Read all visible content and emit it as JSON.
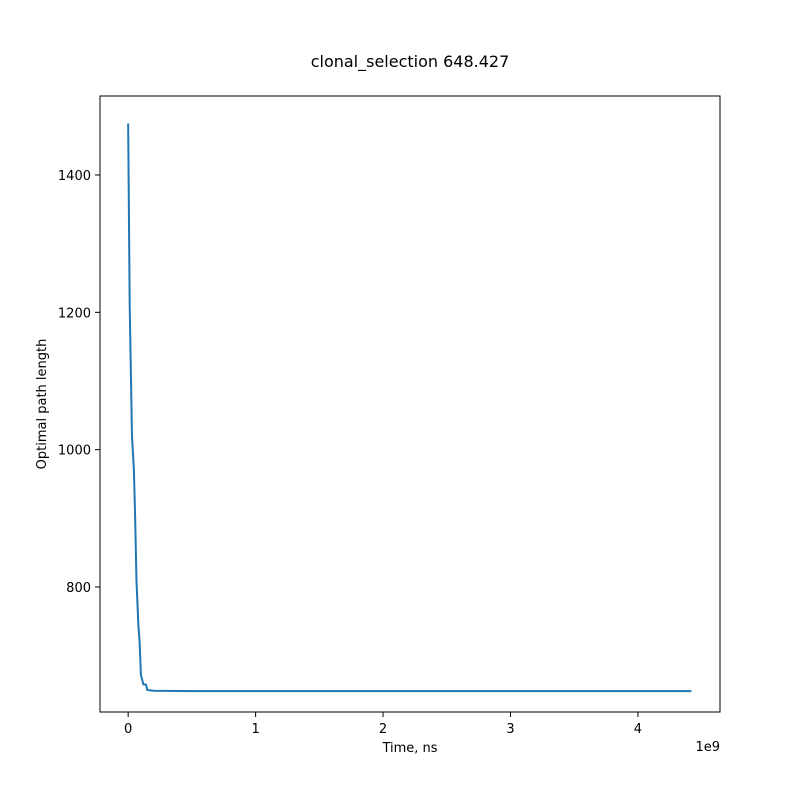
{
  "chart_data": {
    "type": "line",
    "title": "clonal_selection 648.427",
    "xlabel": "Time, ns",
    "ylabel": "Optimal path length",
    "x_offset_label": "1e9",
    "xlim": [
      -0.221,
      4.644
    ],
    "ylim": [
      618,
      1515
    ],
    "x_ticks": [
      0,
      1,
      2,
      3,
      4
    ],
    "x_tick_labels": [
      "0",
      "1",
      "2",
      "3",
      "4"
    ],
    "y_ticks": [
      800,
      1000,
      1200,
      1400
    ],
    "y_tick_labels": [
      "800",
      "1000",
      "1200",
      "1400"
    ],
    "grid": false,
    "series": [
      {
        "color": "#1f77b4",
        "x": [
          0.0,
          0.012,
          0.03,
          0.045,
          0.055,
          0.065,
          0.08,
          0.09,
          0.1,
          0.12,
          0.14,
          0.15,
          0.2,
          0.5,
          1.0,
          2.0,
          3.0,
          4.0,
          4.42
        ],
        "y": [
          1475,
          1210,
          1020,
          970,
          900,
          810,
          745,
          720,
          672,
          658,
          658,
          650,
          649,
          648.4,
          648.4,
          648.4,
          648.4,
          648.4,
          648.4
        ]
      }
    ]
  }
}
